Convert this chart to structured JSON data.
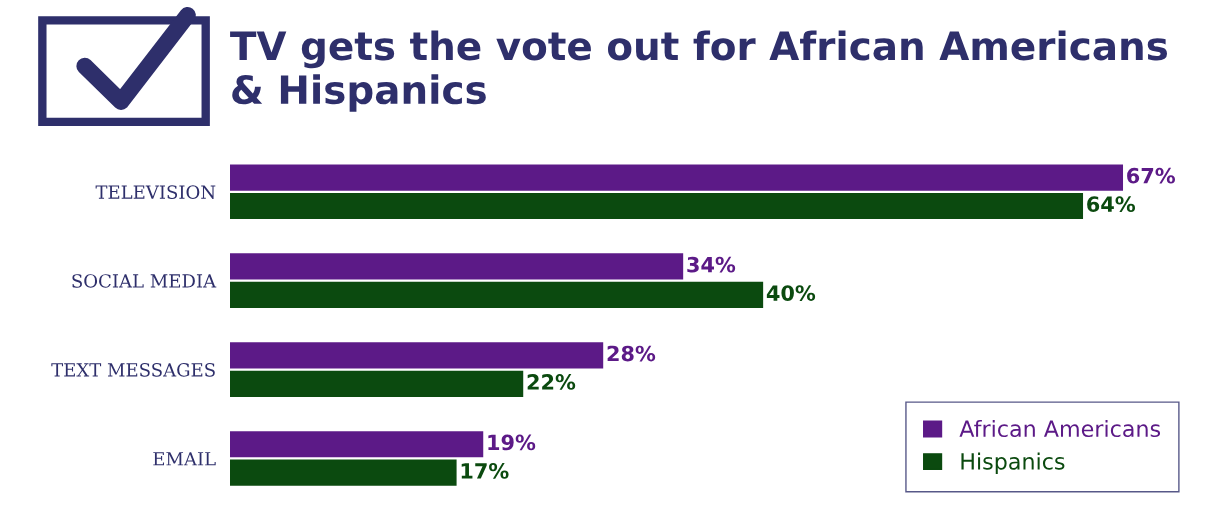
{
  "chart_data": {
    "type": "bar",
    "orientation": "horizontal",
    "title": "TV gets the vote out for African Americans & Hispanics",
    "categories": [
      "TELEVISION",
      "SOCIAL MEDIA",
      "TEXT MESSAGES",
      "EMAIL"
    ],
    "series": [
      {
        "name": "African Americans",
        "color": "#5c1a87",
        "values": [
          67,
          34,
          28,
          19
        ],
        "value_labels": [
          "67%",
          "34%",
          "28%",
          "19%"
        ]
      },
      {
        "name": "Hispanics",
        "color": "#0b4a0f",
        "values": [
          64,
          40,
          22,
          17
        ],
        "value_labels": [
          "64%",
          "40%",
          "22%",
          "17%"
        ]
      }
    ],
    "tick_labels": "y",
    "grid": false,
    "legend": "bottom right"
  }
}
